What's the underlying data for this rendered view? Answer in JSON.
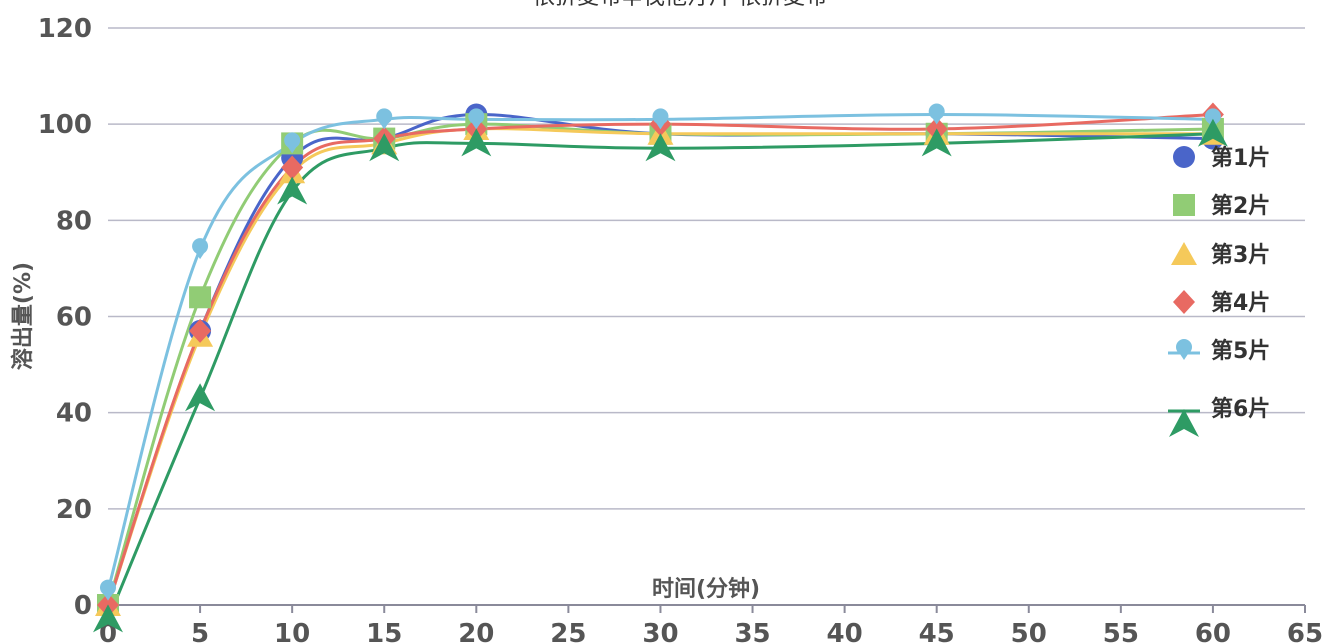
{
  "chart_data": {
    "type": "line",
    "title": "依折麦布辛伐他汀片-依折麦布",
    "xlabel": "时间(分钟)",
    "ylabel": "溶出量(%)",
    "xlim": [
      0,
      65
    ],
    "ylim": [
      0,
      120
    ],
    "x_ticks": [
      0,
      5,
      10,
      15,
      20,
      25,
      30,
      35,
      40,
      45,
      50,
      55,
      60,
      65
    ],
    "y_ticks": [
      0,
      20,
      40,
      60,
      80,
      100,
      120
    ],
    "grid": "horizontal",
    "legend_position": "right",
    "x": [
      0,
      5,
      10,
      15,
      20,
      30,
      45,
      60
    ],
    "series": [
      {
        "name": "第1片",
        "marker": "circle",
        "color": "#4a65c9",
        "values": [
          0,
          57,
          93,
          97,
          102,
          98,
          98,
          97
        ]
      },
      {
        "name": "第2片",
        "marker": "square",
        "color": "#91cc75",
        "values": [
          0,
          64,
          96,
          97,
          100,
          98,
          98,
          99
        ]
      },
      {
        "name": "第3片",
        "marker": "triangle",
        "color": "#f5c95a",
        "values": [
          0,
          56,
          90,
          96,
          99,
          98,
          98,
          98
        ]
      },
      {
        "name": "第4片",
        "marker": "diamond",
        "color": "#e86a62",
        "values": [
          0,
          57,
          91,
          97,
          99,
          100,
          99,
          102
        ]
      },
      {
        "name": "第5片",
        "marker": "pin",
        "color": "#7cc1e0",
        "values": [
          3,
          74,
          96,
          101,
          101,
          101,
          102,
          101
        ]
      },
      {
        "name": "第6片",
        "marker": "arrow",
        "color": "#2e9b64",
        "values": [
          -3,
          43,
          86,
          95,
          96,
          95,
          96,
          98
        ]
      }
    ]
  }
}
